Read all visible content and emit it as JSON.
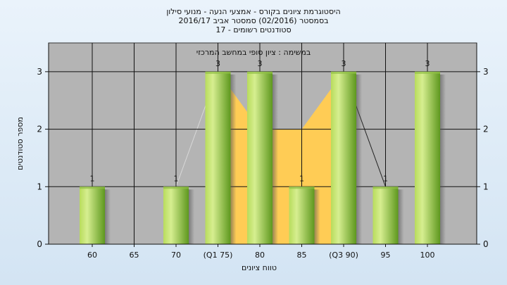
{
  "chart_data": {
    "type": "bar",
    "title_lines": [
      "היסטוגרמת ציונים בקורס - אמצעי הנעה - מנועי סילון",
      "בסמסטר  (02/2016)  סמסטר אביב 2016/17",
      "סטודנטים רשומים - 17"
    ],
    "plot_subtitle": "במשימה : ציון סופי במחשב המרכזי",
    "xlabel": "טווח ציונים",
    "ylabel": "מספר סטודנטים",
    "categories": [
      "60",
      "65",
      "70",
      "(Q1 75)",
      "80",
      "85",
      "(Q3 90)",
      "95",
      "100"
    ],
    "values": [
      1,
      0,
      1,
      3,
      3,
      1,
      3,
      1,
      3
    ],
    "data_labels": [
      "1",
      "",
      "1",
      "3",
      "3",
      "1",
      "3",
      "1",
      "3"
    ],
    "ylim": [
      0,
      3.5
    ],
    "yticks": [
      0,
      1,
      2,
      3
    ],
    "interquartile_area": {
      "x": [
        "(Q1 75)",
        "80",
        "85",
        "(Q3 90)"
      ],
      "values": [
        3,
        2,
        2,
        3
      ]
    },
    "colors": {
      "plot_background": "#b4b4b4",
      "bar_light": "#d4ec8c",
      "bar_dark": "#5f9a1c",
      "area_fill": "#ffcc55",
      "gridline": "#111111"
    },
    "grid": true
  }
}
